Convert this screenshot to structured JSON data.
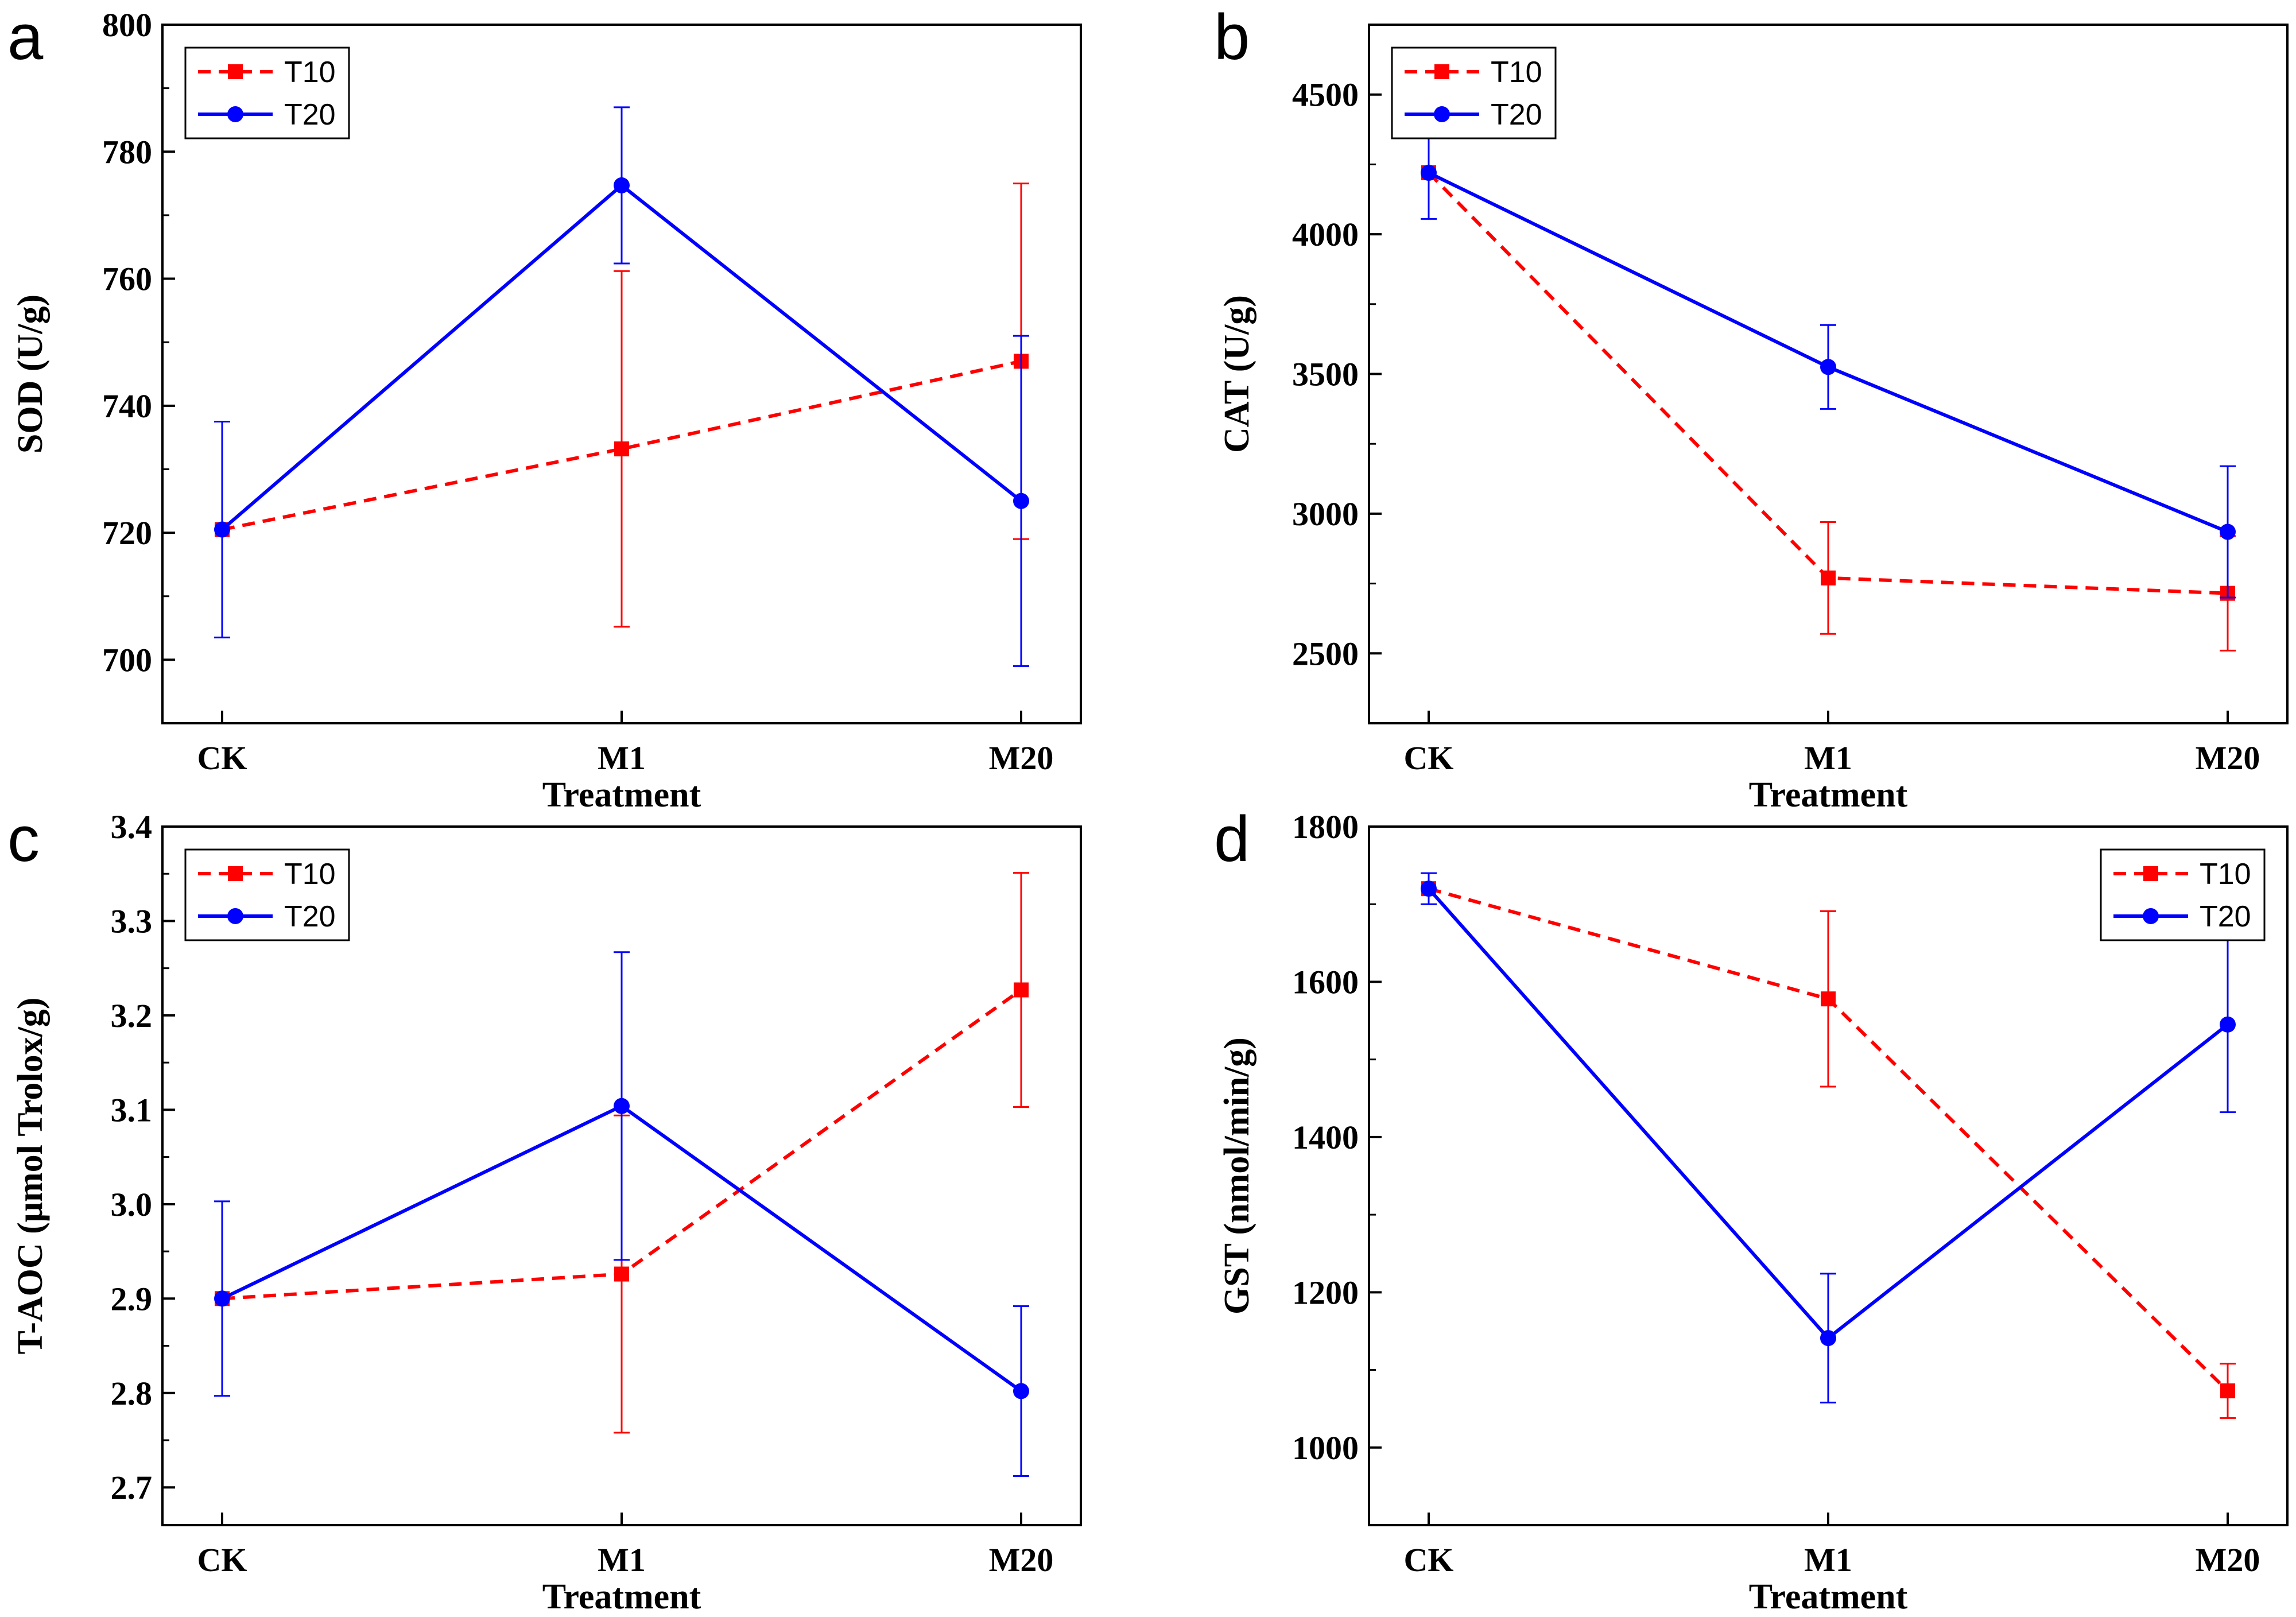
{
  "figure": {
    "colors": {
      "T10": "#ff0000",
      "T20": "#0000ff",
      "axis": "#000000"
    }
  },
  "chart_data": [
    {
      "type": "line",
      "panel_label": "a",
      "title": "",
      "xlabel": "Treatment",
      "ylabel": "SOD (U/g)",
      "categories": [
        "CK",
        "M1",
        "M20"
      ],
      "ylim": [
        690,
        800
      ],
      "yticks": [
        700,
        720,
        740,
        760,
        780,
        800
      ],
      "legend_position": "top-left",
      "series": [
        {
          "name": "T10",
          "style": "dashed",
          "marker": "square",
          "color": "#ff0000",
          "values": [
            720.5,
            733.2,
            747.0
          ],
          "errors": [
            0,
            28.0,
            28.0
          ]
        },
        {
          "name": "T20",
          "style": "solid",
          "marker": "circle",
          "color": "#0000ff",
          "values": [
            720.5,
            774.7,
            725.0
          ],
          "errors": [
            17.0,
            12.3,
            26.0
          ]
        }
      ]
    },
    {
      "type": "line",
      "panel_label": "b",
      "title": "",
      "xlabel": "Treatment",
      "ylabel": "CAT (U/g)",
      "categories": [
        "CK",
        "M1",
        "M20"
      ],
      "ylim": [
        2250,
        4750
      ],
      "yticks": [
        2500,
        3000,
        3500,
        4000,
        4500
      ],
      "legend_position": "top-left",
      "series": [
        {
          "name": "T10",
          "style": "dashed",
          "marker": "square",
          "color": "#ff0000",
          "values": [
            4220,
            2770,
            2715
          ],
          "errors": [
            0,
            200,
            205
          ]
        },
        {
          "name": "T20",
          "style": "solid",
          "marker": "circle",
          "color": "#0000ff",
          "values": [
            4220,
            3525,
            2935
          ],
          "errors": [
            165,
            150,
            235
          ]
        }
      ]
    },
    {
      "type": "line",
      "panel_label": "c",
      "title": "",
      "xlabel": "Treatment",
      "ylabel": "T-AOC (μmol Trolox/g)",
      "categories": [
        "CK",
        "M1",
        "M20"
      ],
      "ylim": [
        2.66,
        3.4
      ],
      "yticks": [
        2.7,
        2.8,
        2.9,
        3.0,
        3.1,
        3.2,
        3.3,
        3.4
      ],
      "ytick_labels": [
        "2.7",
        "2.8",
        "2.9",
        "3.0",
        "3.1",
        "3.2",
        "3.3",
        "3.4"
      ],
      "legend_position": "top-left",
      "series": [
        {
          "name": "T10",
          "style": "dashed",
          "marker": "square",
          "color": "#ff0000",
          "values": [
            2.9,
            2.926,
            3.227
          ],
          "errors": [
            0,
            0.168,
            0.124
          ]
        },
        {
          "name": "T20",
          "style": "solid",
          "marker": "circle",
          "color": "#0000ff",
          "values": [
            2.9,
            3.104,
            2.802
          ],
          "errors": [
            0.103,
            0.163,
            0.09
          ]
        }
      ]
    },
    {
      "type": "line",
      "panel_label": "d",
      "title": "",
      "xlabel": "Treatment",
      "ylabel": "GST (nmol/min/g)",
      "categories": [
        "CK",
        "M1",
        "M20"
      ],
      "ylim": [
        900,
        1800
      ],
      "yticks": [
        1000,
        1200,
        1400,
        1600,
        1800
      ],
      "legend_position": "top-right",
      "series": [
        {
          "name": "T10",
          "style": "dashed",
          "marker": "square",
          "color": "#ff0000",
          "values": [
            1720,
            1578,
            1073
          ],
          "errors": [
            0,
            113,
            35
          ]
        },
        {
          "name": "T20",
          "style": "solid",
          "marker": "circle",
          "color": "#0000ff",
          "values": [
            1720,
            1141,
            1545
          ],
          "errors": [
            20,
            83,
            113
          ]
        }
      ]
    }
  ]
}
